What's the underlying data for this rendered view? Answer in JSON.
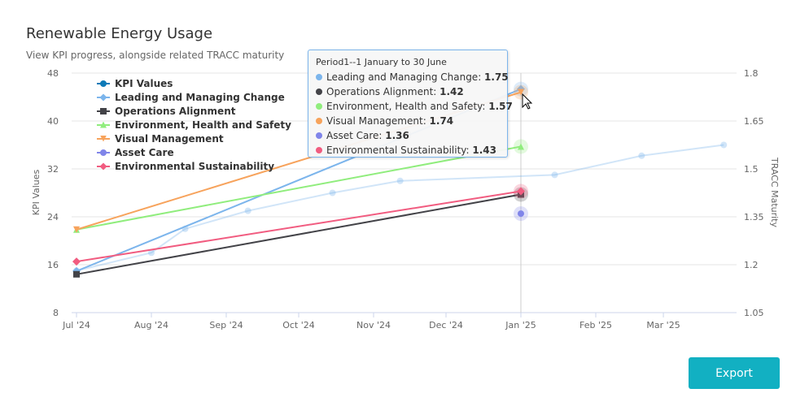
{
  "title": "Renewable Energy Usage",
  "subtitle": "View KPI progress, alongside related TRACC maturity",
  "export_label": "Export",
  "chart_data": {
    "type": "line",
    "title": "Renewable Energy Usage",
    "ylabel": "KPI Values",
    "y2label": "TRACC Maturity",
    "ylim": [
      8,
      48
    ],
    "yticks": [
      "48",
      "40",
      "32",
      "24",
      "16",
      "8"
    ],
    "y2lim": [
      1.05,
      1.8
    ],
    "y2ticks": [
      "1.8",
      "1.65",
      "1.5",
      "1.35",
      "1.2",
      "1.05"
    ],
    "xticks": [
      "Jul '24",
      "Aug '24",
      "Sep '24",
      "Oct '24",
      "Nov '24",
      "Dec '24",
      "Jan '25",
      "Feb '25",
      "Mar '25"
    ],
    "xtick_dates": [
      "2024-07-01",
      "2024-08-01",
      "2024-09-01",
      "2024-10-01",
      "2024-11-01",
      "2024-12-01",
      "2025-01-01",
      "2025-02-01",
      "2025-03-01"
    ],
    "legend_position": "top-left",
    "series": [
      {
        "name": "KPI Values",
        "axis": "left",
        "color": "#7cb5ec",
        "marker": "circle",
        "x": [
          "2024-07-01",
          "2024-08-01",
          "2024-08-15",
          "2024-09-10",
          "2024-10-15",
          "2024-11-12",
          "2025-01-15",
          "2025-02-20",
          "2025-03-26"
        ],
        "values": [
          15,
          18,
          22,
          25,
          28,
          30,
          31,
          34.2,
          36
        ]
      },
      {
        "name": "Leading and Managing Change",
        "axis": "right",
        "color": "#7cb5ec",
        "marker": "diamond",
        "x": [
          "2024-07-01",
          "2025-01-01"
        ],
        "values": [
          1.18,
          1.75
        ]
      },
      {
        "name": "Operations Alignment",
        "axis": "right",
        "color": "#434348",
        "marker": "square",
        "x": [
          "2024-07-01",
          "2025-01-01"
        ],
        "values": [
          1.17,
          1.42
        ]
      },
      {
        "name": "Environment, Health and Safety",
        "axis": "right",
        "color": "#90ed7d",
        "marker": "triangle",
        "x": [
          "2024-07-01",
          "2025-01-01"
        ],
        "values": [
          1.31,
          1.57
        ]
      },
      {
        "name": "Visual Management",
        "axis": "right",
        "color": "#f7a35c",
        "marker": "triangle-down",
        "x": [
          "2024-07-01",
          "2025-01-01"
        ],
        "values": [
          1.31,
          1.74
        ]
      },
      {
        "name": "Asset Care",
        "axis": "right",
        "color": "#8085e9",
        "marker": "circle",
        "x": [
          "2025-01-01"
        ],
        "values": [
          1.36
        ]
      },
      {
        "name": "Environmental Sustainability",
        "axis": "right",
        "color": "#f15c80",
        "marker": "diamond",
        "x": [
          "2024-07-01",
          "2025-01-01"
        ],
        "values": [
          1.21,
          1.43
        ]
      }
    ]
  },
  "tooltip": {
    "header": "Period1--1 January to 30 June",
    "rows": [
      {
        "label": "Leading and Managing Change: ",
        "value": "1.75",
        "color": "#7cb5ec"
      },
      {
        "label": "Operations Alignment: ",
        "value": "1.42",
        "color": "#434348"
      },
      {
        "label": "Environment, Health and Safety: ",
        "value": "1.57",
        "color": "#90ed7d"
      },
      {
        "label": "Visual Management: ",
        "value": "1.74",
        "color": "#f7a35c"
      },
      {
        "label": "Asset Care: ",
        "value": "1.36",
        "color": "#8085e9"
      },
      {
        "label": "Environmental Sustainability: ",
        "value": "1.43",
        "color": "#f15c80"
      }
    ]
  }
}
